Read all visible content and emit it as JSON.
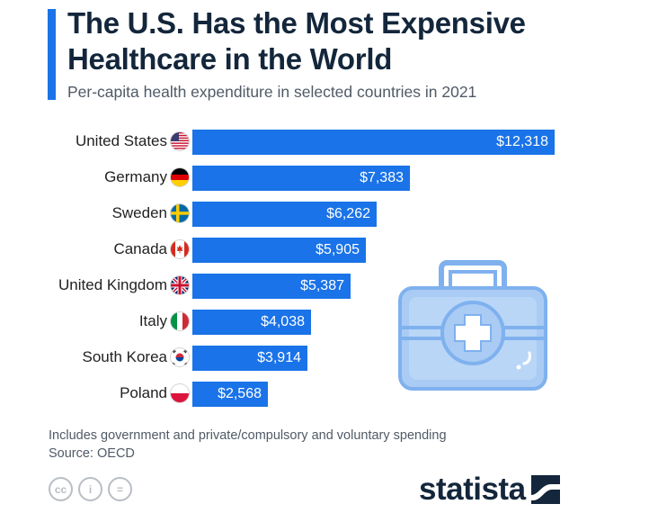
{
  "header": {
    "title_line1": "The U.S. Has the Most Expensive",
    "title_line2": "Healthcare in the World",
    "subtitle": "Per-capita health expenditure in selected countries in 2021"
  },
  "colors": {
    "bar": "#1a73e8",
    "accent": "#1a73e8"
  },
  "chart_data": {
    "type": "bar",
    "orientation": "horizontal",
    "title": "The U.S. Has the Most Expensive Healthcare in the World",
    "subtitle": "Per-capita health expenditure in selected countries in 2021",
    "categories": [
      "United States",
      "Germany",
      "Sweden",
      "Canada",
      "United Kingdom",
      "Italy",
      "South Korea",
      "Poland"
    ],
    "values": [
      12318,
      7383,
      6262,
      5905,
      5387,
      4038,
      3914,
      2568
    ],
    "value_labels": [
      "$12,318",
      "$7,383",
      "$6,262",
      "$5,905",
      "$5,387",
      "$4,038",
      "$3,914",
      "$2,568"
    ],
    "flags": [
      "us-flag-icon",
      "germany-flag-icon",
      "sweden-flag-icon",
      "canada-flag-icon",
      "uk-flag-icon",
      "italy-flag-icon",
      "south-korea-flag-icon",
      "poland-flag-icon"
    ],
    "xlim": [
      0,
      12318
    ]
  },
  "footer": {
    "note": "Includes government and private/compulsory and voluntary spending",
    "source": "Source: OECD",
    "logo": "statista",
    "cc_icons": [
      "cc",
      "i",
      "="
    ]
  }
}
